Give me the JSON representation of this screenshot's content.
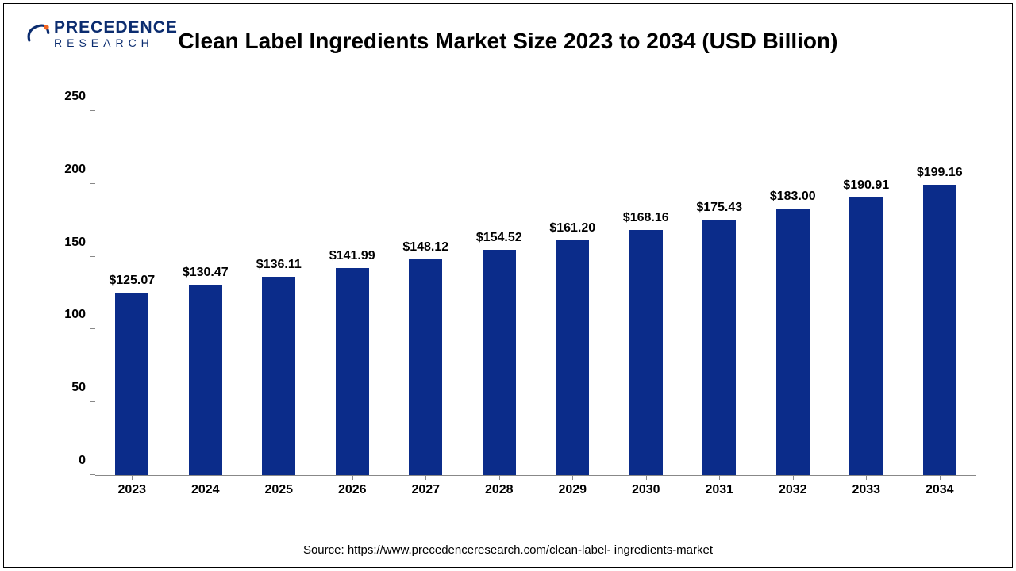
{
  "logo": {
    "top_text": "PRECEDENCE",
    "bottom_text": "RESEARCH",
    "swoosh_color": "#0b2c6f",
    "dot_color": "#f26522"
  },
  "chart": {
    "type": "bar",
    "title": "Clean Label Ingredients Market Size 2023 to 2034 (USD Billion)",
    "title_fontsize": 28,
    "title_weight": "700",
    "categories": [
      "2023",
      "2024",
      "2025",
      "2026",
      "2027",
      "2028",
      "2029",
      "2030",
      "2031",
      "2032",
      "2033",
      "2034"
    ],
    "values": [
      125.07,
      130.47,
      136.11,
      141.99,
      148.12,
      154.52,
      161.2,
      168.16,
      175.43,
      183.0,
      190.91,
      199.16
    ],
    "value_labels": [
      "$125.07",
      "$130.47",
      "$136.11",
      "$141.99",
      "$148.12",
      "$154.52",
      "$161.20",
      "$168.16",
      "$175.43",
      "$183.00",
      "$190.91",
      "$199.16"
    ],
    "bar_color": "#0b2c8a",
    "background_color": "#ffffff",
    "axis_color": "#888888",
    "label_color": "#000000",
    "ylim": [
      0,
      250
    ],
    "ytick_step": 50,
    "yticks": [
      0,
      50,
      100,
      150,
      200,
      250
    ],
    "bar_width_ratio": 0.45,
    "value_label_fontsize": 16,
    "axis_label_fontsize": 16,
    "axis_label_weight": "700"
  },
  "source": "Source: https://www.precedenceresearch.com/clean-label- ingredients-market"
}
